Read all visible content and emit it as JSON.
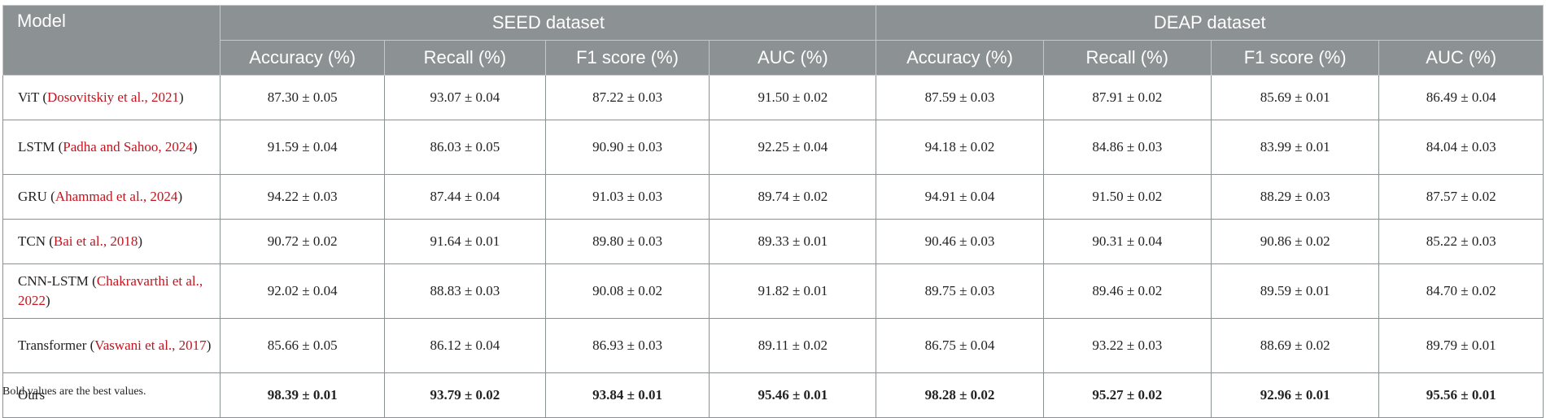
{
  "table": {
    "headers": {
      "model": "Model",
      "groups": [
        "SEED dataset",
        "DEAP dataset"
      ],
      "metrics": [
        "Accuracy (%)",
        "Recall (%)",
        "F1 score (%)",
        "AUC (%)",
        "Accuracy (%)",
        "Recall (%)",
        "F1 score (%)",
        "AUC (%)"
      ]
    },
    "rows": [
      {
        "model": "ViT",
        "ref": "Dosovitskiy et al., 2021",
        "values": [
          "87.30 ± 0.05",
          "93.07 ± 0.04",
          "87.22 ± 0.03",
          "91.50 ± 0.02",
          "87.59 ± 0.03",
          "87.91 ± 0.02",
          "85.69 ± 0.01",
          "86.49 ± 0.04"
        ]
      },
      {
        "model": "LSTM",
        "ref": "Padha and Sahoo, 2024",
        "values": [
          "91.59 ± 0.04",
          "86.03 ± 0.05",
          "90.90 ± 0.03",
          "92.25 ± 0.04",
          "94.18 ± 0.02",
          "84.86 ± 0.03",
          "83.99 ± 0.01",
          "84.04 ± 0.03"
        ]
      },
      {
        "model": "GRU",
        "ref": "Ahammad et al., 2024",
        "values": [
          "94.22 ± 0.03",
          "87.44 ± 0.04",
          "91.03 ± 0.03",
          "89.74 ± 0.02",
          "94.91 ± 0.04",
          "91.50 ± 0.02",
          "88.29 ± 0.03",
          "87.57 ± 0.02"
        ]
      },
      {
        "model": "TCN",
        "ref": "Bai et al., 2018",
        "values": [
          "90.72 ± 0.02",
          "91.64 ± 0.01",
          "89.80 ± 0.03",
          "89.33 ± 0.01",
          "90.46 ± 0.03",
          "90.31 ± 0.04",
          "90.86 ± 0.02",
          "85.22 ± 0.03"
        ]
      },
      {
        "model": "CNN-LSTM",
        "ref": "Chakravarthi et al., 2022",
        "values": [
          "92.02 ± 0.04",
          "88.83 ± 0.03",
          "90.08 ± 0.02",
          "91.82 ± 0.01",
          "89.75 ± 0.03",
          "89.46 ± 0.02",
          "89.59 ± 0.01",
          "84.70 ± 0.02"
        ]
      },
      {
        "model": "Transformer",
        "ref": "Vaswani et al., 2017",
        "values": [
          "85.66 ± 0.05",
          "86.12 ± 0.04",
          "86.93 ± 0.03",
          "89.11 ± 0.02",
          "86.75 ± 0.04",
          "93.22 ± 0.03",
          "88.69 ± 0.02",
          "89.79 ± 0.01"
        ]
      },
      {
        "model": "Ours",
        "ref": "",
        "values": [
          "98.39 ± 0.01",
          "93.79 ± 0.02",
          "93.84 ± 0.01",
          "95.46 ± 0.01",
          "98.28 ± 0.02",
          "95.27 ± 0.02",
          "92.96 ± 0.01",
          "95.56 ± 0.01"
        ]
      }
    ]
  },
  "footnote": "Bold values are the best values.",
  "colors": {
    "header_bg": "#8c9193",
    "reference": "#c0151f"
  }
}
